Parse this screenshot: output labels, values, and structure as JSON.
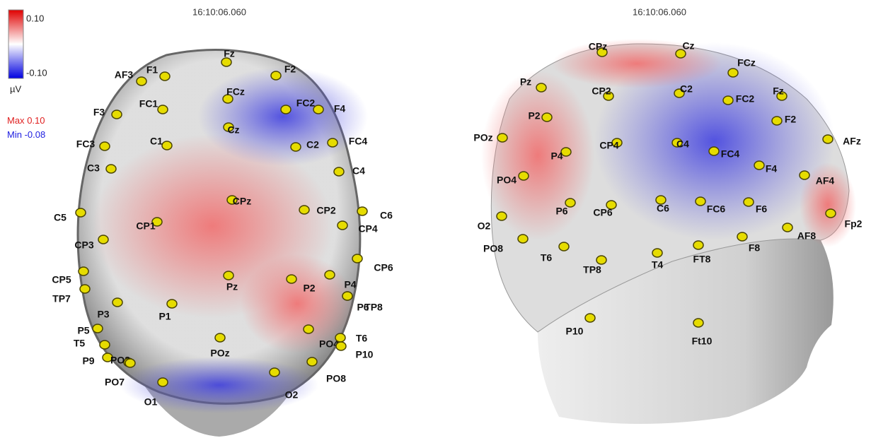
{
  "colorbar": {
    "max": "0.10",
    "min": "-0.10",
    "unit": "µV"
  },
  "stats": {
    "max_label": "Max",
    "max": "0.10",
    "min_label": "Min",
    "min": "-0.08"
  },
  "left_view": {
    "timestamp": "16:10:06.060",
    "electrodes": [
      "Fz",
      "F1",
      "AF3",
      "F2",
      "FCz",
      "FC1",
      "FC2",
      "F4",
      "F3",
      "Cz",
      "C1",
      "C2",
      "FC3",
      "FC4",
      "C3",
      "C4",
      "CPz",
      "CP2",
      "C6",
      "C5",
      "CP1",
      "CP4",
      "CP3",
      "CP6",
      "CP5",
      "Pz",
      "P2",
      "P4",
      "TP7",
      "P6",
      "TP8",
      "P3",
      "P1",
      "P5",
      "T5",
      "PO4",
      "POz",
      "T6",
      "P9",
      "PO3",
      "P10",
      "PO8",
      "PO7",
      "O1",
      "O2"
    ]
  },
  "right_view": {
    "timestamp": "16:10:06.060",
    "electrodes": [
      "CPz",
      "Cz",
      "FCz",
      "Pz",
      "CP2",
      "C2",
      "FC2",
      "Fz",
      "P2",
      "F2",
      "POz",
      "CP4",
      "C4",
      "FC4",
      "AFz",
      "P4",
      "PO4",
      "F4",
      "AF4",
      "P6",
      "CP6",
      "C6",
      "FC6",
      "F6",
      "Fp2",
      "O2",
      "AF8",
      "F8",
      "PO8",
      "T6",
      "TP8",
      "T4",
      "FT8",
      "P10",
      "Ft10"
    ]
  }
}
